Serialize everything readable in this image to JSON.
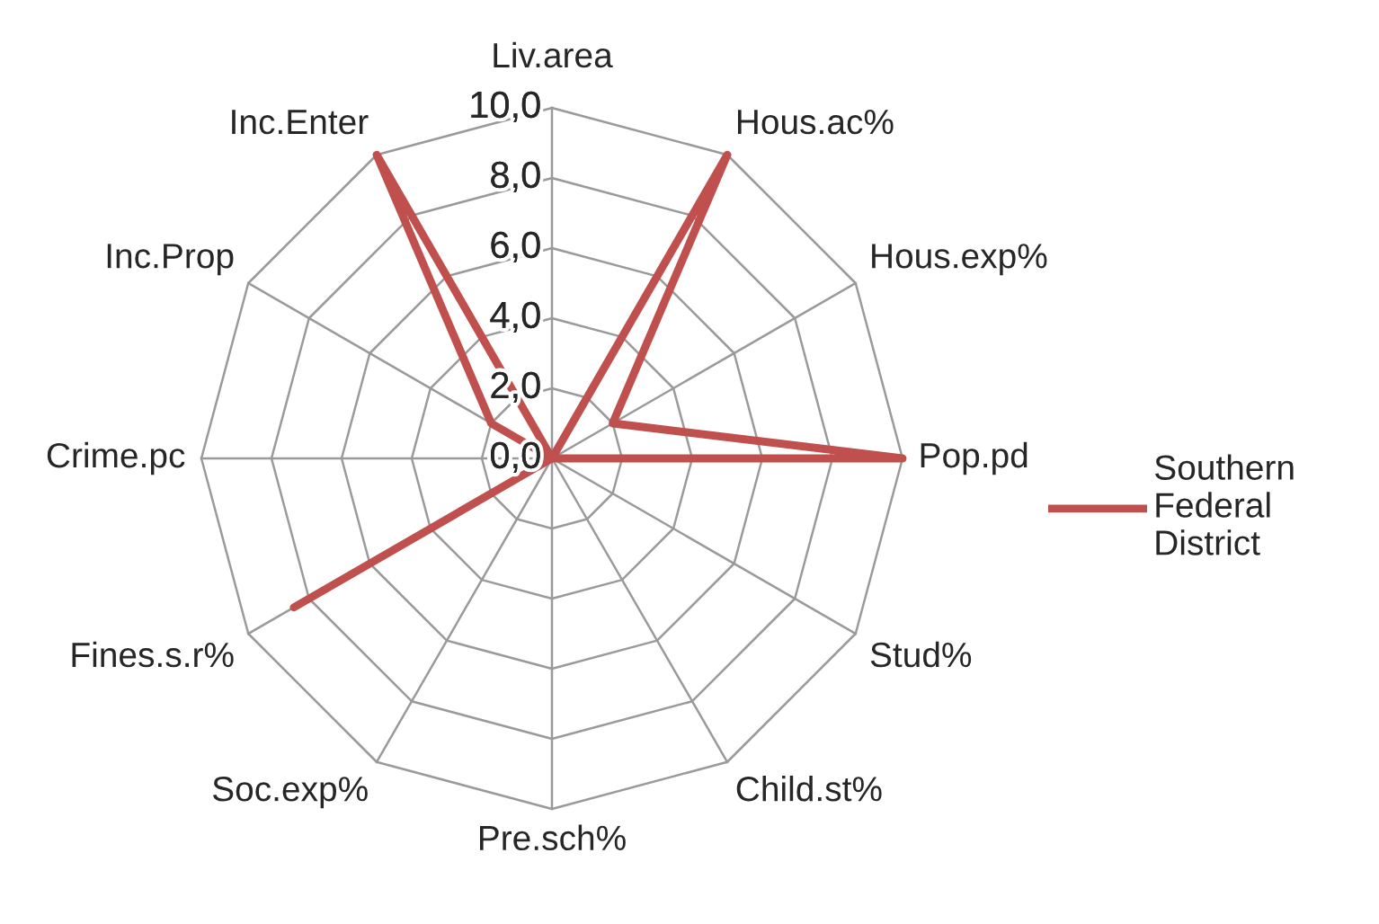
{
  "chart_data": {
    "type": "radar",
    "categories": [
      "Liv.area",
      "Hous.ac%",
      "Hous.exp%",
      "Pop.pd",
      "Stud%",
      "Child.st%",
      "Pre.sch%",
      "Soc.exp%",
      "Fines.s.r%",
      "Crime.pc",
      "Inc.Prop",
      "Inc.Enter"
    ],
    "series": [
      {
        "name": "Southern Federal District",
        "color": "#c0504d",
        "values": [
          0,
          10,
          2.0,
          10,
          0,
          0,
          0,
          0,
          8.5,
          0,
          2.0,
          10
        ]
      }
    ],
    "ylim": [
      0,
      10
    ],
    "yticks": [
      {
        "value": 0,
        "label": "0,0"
      },
      {
        "value": 2,
        "label": "2,0"
      },
      {
        "value": 4,
        "label": "4,0"
      },
      {
        "value": 6,
        "label": "6,0"
      },
      {
        "value": 8,
        "label": "8,0"
      },
      {
        "value": 10,
        "label": "10,0"
      }
    ],
    "grid": true,
    "legend": "right",
    "line_style": "solid"
  }
}
